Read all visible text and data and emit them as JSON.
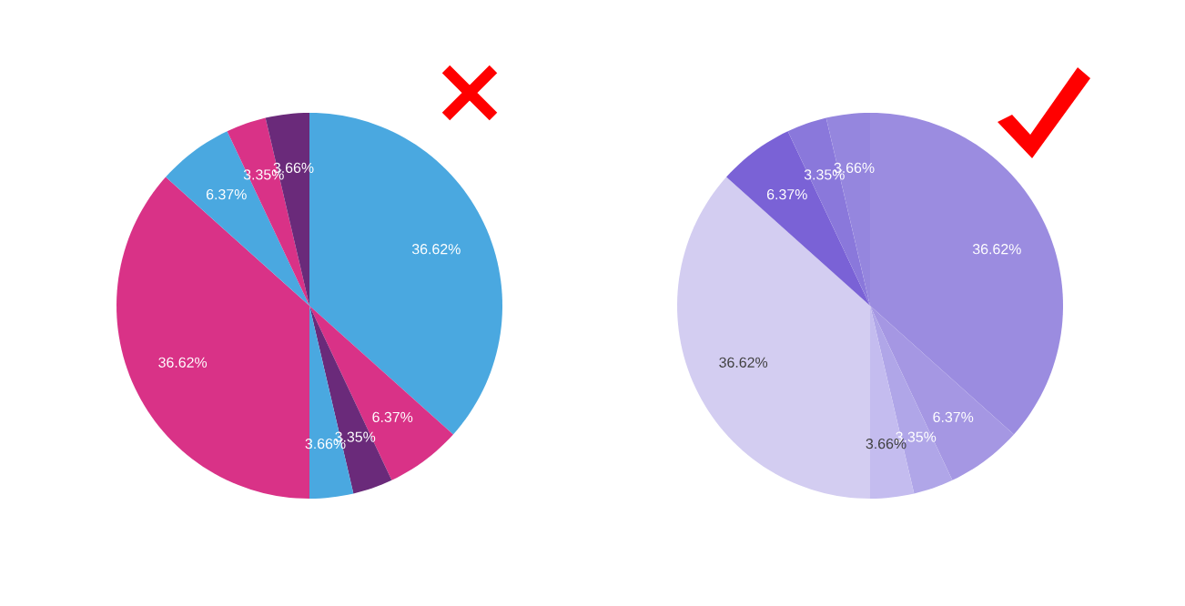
{
  "chart_data": [
    {
      "type": "pie",
      "categories": [
        null,
        null,
        null,
        null,
        null,
        null,
        null,
        null
      ],
      "values": [
        36.62,
        6.37,
        3.35,
        3.66,
        36.62,
        6.37,
        3.35,
        3.66
      ],
      "colors": [
        "#4aa8e0",
        "#d93287",
        "#6a2a7a",
        "#4aa8e0",
        "#d93287",
        "#4aa8e0",
        "#d93287",
        "#6a2a7a"
      ],
      "value_labels": [
        "36.62%",
        "6.37%",
        "3.35%",
        "3.66%",
        "36.62%",
        "6.37%",
        "3.35%",
        "3.66%"
      ]
    },
    {
      "type": "pie",
      "categories": [
        null,
        null,
        null,
        null,
        null,
        null,
        null,
        null
      ],
      "values": [
        36.62,
        6.37,
        3.35,
        3.66,
        36.62,
        6.37,
        3.35,
        3.66
      ],
      "colors": [
        "#9b8ce0",
        "#a597e3",
        "#b0a6e8",
        "#c4bcef",
        "#d3cdf1",
        "#7a62d6",
        "#8a78db",
        "#9586de"
      ],
      "value_labels": [
        "36.62%",
        "6.37%",
        "3.35%",
        "3.66%",
        "36.62%",
        "6.37%",
        "3.35%",
        "3.66%"
      ]
    }
  ]
}
